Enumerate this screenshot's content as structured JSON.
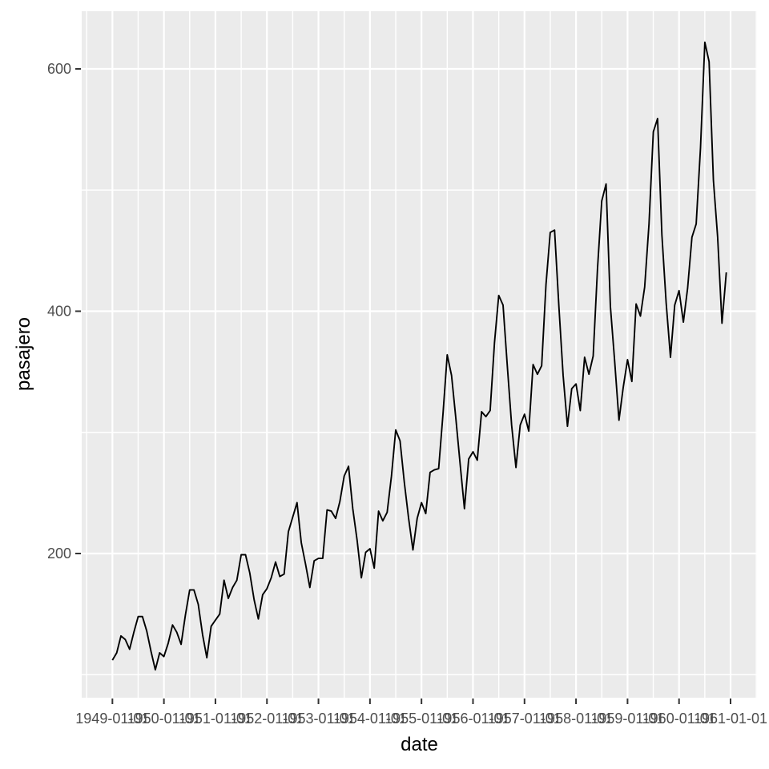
{
  "chart_data": {
    "type": "line",
    "title": "",
    "xlabel": "date",
    "ylabel": "pasajero",
    "grid": "on",
    "legend": "none",
    "x_range": [
      1948.404,
      1961.513
    ],
    "y_range": [
      81,
      647.6
    ],
    "x_ticks": [
      {
        "pos": 1949,
        "label": "1949-01-01"
      },
      {
        "pos": 1950,
        "label": "1950-01-01"
      },
      {
        "pos": 1951,
        "label": "1951-01-01"
      },
      {
        "pos": 1952,
        "label": "1952-01-01"
      },
      {
        "pos": 1953,
        "label": "1953-01-01"
      },
      {
        "pos": 1954,
        "label": "1954-01-01"
      },
      {
        "pos": 1955,
        "label": "1955-01-01"
      },
      {
        "pos": 1956,
        "label": "1956-01-01"
      },
      {
        "pos": 1957,
        "label": "1957-01-01"
      },
      {
        "pos": 1958,
        "label": "1958-01-01"
      },
      {
        "pos": 1959,
        "label": "1959-01-01"
      },
      {
        "pos": 1960,
        "label": "1960-01-01"
      },
      {
        "pos": 1961,
        "label": "1961-01-01"
      }
    ],
    "x_minor": [
      1948.5,
      1949.5,
      1950.5,
      1951.5,
      1952.5,
      1953.5,
      1954.5,
      1955.5,
      1956.5,
      1957.5,
      1958.5,
      1959.5,
      1960.5,
      1961.5
    ],
    "y_ticks": [
      200,
      400,
      600
    ],
    "y_minor": [
      100,
      300,
      500
    ],
    "series": [
      {
        "name": "pasajero",
        "start_year": 1949,
        "frequency": "monthly",
        "values": [
          112,
          118,
          132,
          129,
          121,
          135,
          148,
          148,
          136,
          119,
          104,
          118,
          115,
          126,
          141,
          135,
          125,
          149,
          170,
          170,
          158,
          133,
          114,
          140,
          145,
          150,
          178,
          163,
          172,
          178,
          199,
          199,
          184,
          162,
          146,
          166,
          171,
          180,
          193,
          181,
          183,
          218,
          230,
          242,
          209,
          191,
          172,
          194,
          196,
          196,
          236,
          235,
          229,
          243,
          264,
          272,
          237,
          211,
          180,
          201,
          204,
          188,
          235,
          227,
          234,
          264,
          302,
          293,
          259,
          229,
          203,
          229,
          242,
          233,
          267,
          269,
          270,
          315,
          364,
          347,
          312,
          274,
          237,
          278,
          284,
          277,
          317,
          313,
          318,
          374,
          413,
          405,
          355,
          306,
          271,
          306,
          315,
          301,
          356,
          348,
          355,
          422,
          465,
          467,
          404,
          347,
          305,
          336,
          340,
          318,
          362,
          348,
          363,
          435,
          491,
          505,
          404,
          359,
          310,
          337,
          360,
          342,
          406,
          396,
          420,
          472,
          548,
          559,
          463,
          407,
          362,
          405,
          417,
          391,
          419,
          461,
          472,
          535,
          622,
          606,
          508,
          461,
          390,
          432
        ]
      }
    ],
    "colors": {
      "background": "#FFFFFF",
      "panel": "#EBEBEB",
      "grid": "#FFFFFF",
      "line": "#000000",
      "tick_mark": "#333333",
      "tick_label": "#4D4D4D",
      "axis_title": "#000000"
    }
  }
}
